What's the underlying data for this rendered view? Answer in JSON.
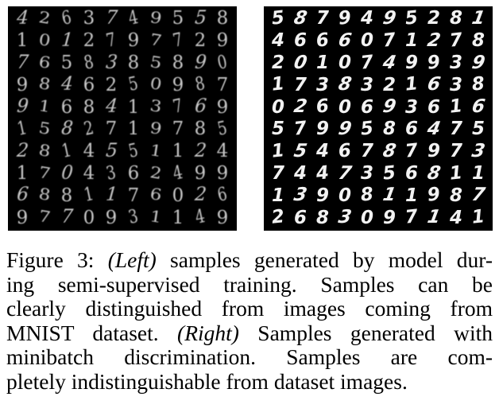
{
  "figure": {
    "left_grid_rows": [
      "4263749558",
      "1012797729",
      "7658385890",
      "9846250987",
      "9168413769",
      "1582719785",
      "2814551124",
      "1704362499",
      "6881176026",
      "9770931149"
    ],
    "right_grid_rows": [
      "5879495281",
      "4666071278",
      "2010749939",
      "1738321638",
      "0260693616",
      "5799586475",
      "1546787973",
      "7447356811",
      "1390811987",
      "2683097141"
    ],
    "caption_lines": [
      {
        "parts": [
          {
            "text": "Figure 3: ",
            "italic": false
          },
          {
            "text": "(Left)",
            "italic": true
          },
          {
            "text": " samples generated by model dur-",
            "italic": false
          }
        ]
      },
      {
        "parts": [
          {
            "text": "ing semi-supervised training.   Samples can be",
            "italic": false
          }
        ]
      },
      {
        "parts": [
          {
            "text": "clearly distinguished from images coming from",
            "italic": false
          }
        ]
      },
      {
        "parts": [
          {
            "text": "MNIST dataset. ",
            "italic": false
          },
          {
            "text": "(Right)",
            "italic": true
          },
          {
            "text": " Samples generated with",
            "italic": false
          }
        ]
      },
      {
        "parts": [
          {
            "text": "minibatch discrimination.    Samples are com-",
            "italic": false
          }
        ]
      },
      {
        "parts": [
          {
            "text": "pletely indistinguishable from dataset images.",
            "italic": false
          }
        ]
      }
    ]
  }
}
